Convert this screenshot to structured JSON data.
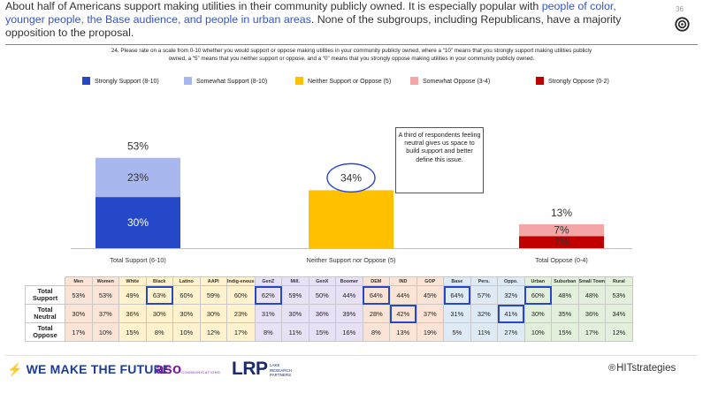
{
  "page": {
    "number": "36"
  },
  "headline": {
    "part1": "About half of Americans support making utilities in their community publicly owned. It is especially popular with ",
    "highlight": "people of color, younger people, the Base audience, and people in urban areas",
    "part2": ". None of the subgroups, including Republicans, have a majority opposition to the proposal."
  },
  "question": {
    "line1": "24. Please rate on a scale from 0-10 whether you would support or oppose making utilities in your community publicly owned, where a “10” means that you strongly support making utilities publicly",
    "line2": "owned, a “5” means that you neither support or oppose, and a “0” means that you strongly oppose making utilities in your community publicly owned."
  },
  "legend": [
    {
      "label": "Strongly Support (8-10)",
      "color": "#2448c8"
    },
    {
      "label": "Somewhat Support (8-10)",
      "color": "#a8b8ee"
    },
    {
      "label": "Neither Support or Oppose (5)",
      "color": "#ffc000"
    },
    {
      "label": "Somewhat Oppose (3-4)",
      "color": "#f4a6a6"
    },
    {
      "label": "Strongly Oppose (0-2)",
      "color": "#c00000"
    }
  ],
  "chart_data": {
    "type": "bar",
    "stacked": true,
    "categories": [
      "Total Support (6-10)",
      "Neither Support nor Oppose (5)",
      "Total Oppose (0-4)"
    ],
    "totals": [
      "53%",
      "34%",
      "13%"
    ],
    "series": [
      {
        "name": "Strongly Support (8-10)",
        "category": 0,
        "value": 30,
        "label": "30%",
        "color": "#2448c8"
      },
      {
        "name": "Somewhat Support (8-10)",
        "category": 0,
        "value": 23,
        "label": "23%",
        "color": "#a8b8ee"
      },
      {
        "name": "Neither Support or Oppose (5)",
        "category": 1,
        "value": 34,
        "label": "34%",
        "color": "#ffc000"
      },
      {
        "name": "Strongly Oppose (0-2)",
        "category": 2,
        "value": 7,
        "label": "7%",
        "color": "#c00000"
      },
      {
        "name": "Somewhat Oppose (3-4)",
        "category": 2,
        "value": 7,
        "label": "7%",
        "color": "#f4a6a6"
      }
    ],
    "ylim": [
      0,
      60
    ],
    "annotation": "A third of respondents feeling neutral gives us space to build support and better define this issue."
  },
  "table": {
    "columns": [
      {
        "label": "Men",
        "bg": "#fbe4d5"
      },
      {
        "label": "Women",
        "bg": "#fbe4d5"
      },
      {
        "label": "White",
        "bg": "#fff2cc"
      },
      {
        "label": "Black",
        "bg": "#fff2cc"
      },
      {
        "label": "Latino",
        "bg": "#fff2cc"
      },
      {
        "label": "AAPI",
        "bg": "#fff2cc"
      },
      {
        "label": "Indig-enous",
        "bg": "#fff2cc"
      },
      {
        "label": "GenZ",
        "bg": "#e8e0f4"
      },
      {
        "label": "Mill.",
        "bg": "#e8e0f4"
      },
      {
        "label": "GenX",
        "bg": "#e8e0f4"
      },
      {
        "label": "Boomer",
        "bg": "#e8e0f4"
      },
      {
        "label": "DEM",
        "bg": "#fbe4d5"
      },
      {
        "label": "IND",
        "bg": "#fbe4d5"
      },
      {
        "label": "GOP",
        "bg": "#fbe4d5"
      },
      {
        "label": "Base",
        "bg": "#deebf7"
      },
      {
        "label": "Pers.",
        "bg": "#deebf7"
      },
      {
        "label": "Oppo.",
        "bg": "#deebf7"
      },
      {
        "label": "Urban",
        "bg": "#e2efda"
      },
      {
        "label": "Suburban",
        "bg": "#e2efda"
      },
      {
        "label": "Small Town",
        "bg": "#e2efda"
      },
      {
        "label": "Rural",
        "bg": "#e2efda"
      }
    ],
    "rows": [
      {
        "label": "Total Support",
        "values": [
          "53%",
          "53%",
          "49%",
          "63%",
          "60%",
          "59%",
          "60%",
          "62%",
          "59%",
          "50%",
          "44%",
          "64%",
          "44%",
          "45%",
          "64%",
          "57%",
          "32%",
          "60%",
          "48%",
          "48%",
          "53%"
        ],
        "highlight": [
          3,
          7,
          11,
          14,
          17
        ]
      },
      {
        "label": "Total Neutral",
        "values": [
          "30%",
          "37%",
          "36%",
          "30%",
          "30%",
          "30%",
          "23%",
          "31%",
          "30%",
          "36%",
          "39%",
          "28%",
          "42%",
          "37%",
          "31%",
          "32%",
          "41%",
          "30%",
          "35%",
          "36%",
          "34%"
        ],
        "highlight": [
          12,
          16
        ]
      },
      {
        "label": "Total Oppose",
        "values": [
          "17%",
          "10%",
          "15%",
          "8%",
          "10%",
          "12%",
          "17%",
          "8%",
          "11%",
          "15%",
          "16%",
          "8%",
          "13%",
          "19%",
          "5%",
          "11%",
          "27%",
          "10%",
          "15%",
          "17%",
          "12%"
        ],
        "highlight": []
      }
    ]
  },
  "footer": {
    "wmtf": "WE MAKE THE FUTURE",
    "aso": "aso",
    "aso_sub": "COMMUNICATIONS",
    "lrp": "LRP",
    "lrp_sub1": "LAKE",
    "lrp_sub2": "RESEARCH",
    "lrp_sub3": "PARTNERS",
    "hit_prefix": "HIT",
    "hit_suffix": "strategies"
  }
}
